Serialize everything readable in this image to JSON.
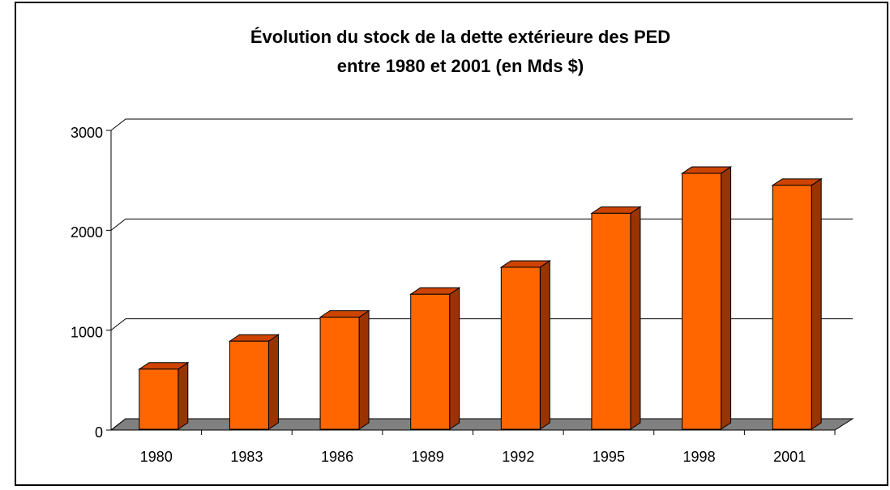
{
  "chart_data": {
    "type": "bar3d",
    "title": [
      "Évolution du stock de la dette extérieure des PED",
      "entre 1980 et 2001 (en Mds $)"
    ],
    "categories": [
      "1980",
      "1983",
      "1986",
      "1989",
      "1992",
      "1995",
      "1998",
      "2001"
    ],
    "values": [
      610,
      890,
      1130,
      1360,
      1630,
      2170,
      2570,
      2450
    ],
    "color": "#ff6600",
    "ylim": [
      0,
      3000
    ],
    "yticks": [
      0,
      1000,
      2000,
      3000
    ],
    "grid": true
  }
}
